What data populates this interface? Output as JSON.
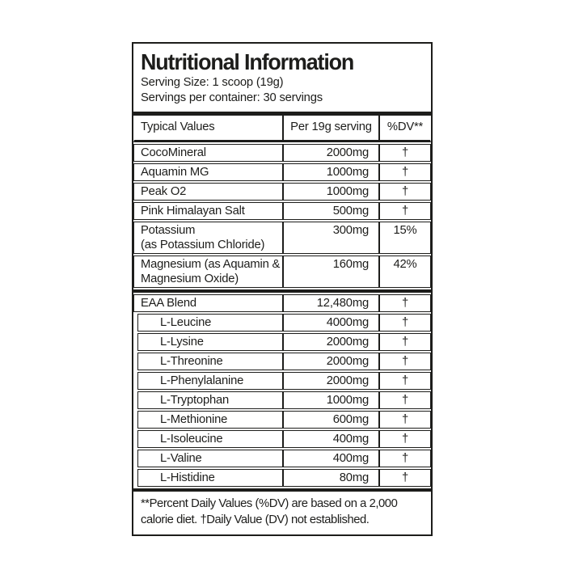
{
  "label": {
    "title": "Nutritional Information",
    "serving_size": "Serving Size: 1 scoop (19g)",
    "servings_per_container": "Servings per container: 30 servings",
    "columns": [
      "Typical Values",
      "Per 19g serving",
      "%DV**"
    ],
    "rows": [
      {
        "name": "CocoMineral",
        "amount": "2000mg",
        "dv": "†",
        "indent": false
      },
      {
        "name": "Aquamin MG",
        "amount": "1000mg",
        "dv": "†",
        "indent": false
      },
      {
        "name": "Peak O2",
        "amount": "1000mg",
        "dv": "†",
        "indent": false
      },
      {
        "name": "Pink Himalayan Salt",
        "amount": "500mg",
        "dv": "†",
        "indent": false
      },
      {
        "name": "Potassium\n(as Potassium Chloride)",
        "amount": "300mg",
        "dv": "15%",
        "indent": false
      },
      {
        "name": "Magnesium (as Aquamin &\nMagnesium Oxide)",
        "amount": "160mg",
        "dv": "42%",
        "indent": false
      },
      {
        "name": "EAA Blend",
        "amount": "12,480mg",
        "dv": "†",
        "indent": false,
        "thick_divider_before": true
      },
      {
        "name": "L-Leucine",
        "amount": "4000mg",
        "dv": "†",
        "indent": true
      },
      {
        "name": "L-Lysine",
        "amount": "2000mg",
        "dv": "†",
        "indent": true
      },
      {
        "name": "L-Threonine",
        "amount": "2000mg",
        "dv": "†",
        "indent": true
      },
      {
        "name": "L-Phenylalanine",
        "amount": "2000mg",
        "dv": "†",
        "indent": true
      },
      {
        "name": "L-Tryptophan",
        "amount": "1000mg",
        "dv": "†",
        "indent": true
      },
      {
        "name": "L-Methionine",
        "amount": "600mg",
        "dv": "†",
        "indent": true
      },
      {
        "name": "L-Isoleucine",
        "amount": "400mg",
        "dv": "†",
        "indent": true
      },
      {
        "name": "L-Valine",
        "amount": "400mg",
        "dv": "†",
        "indent": true
      },
      {
        "name": "L-Histidine",
        "amount": "80mg",
        "dv": "†",
        "indent": true
      }
    ],
    "footnote": "**Percent Daily Values (%DV) are based on a 2,000 calorie diet. †Daily Value (DV) not established.",
    "colors": {
      "ink": "#1d1d1b",
      "background": "#ffffff"
    }
  }
}
